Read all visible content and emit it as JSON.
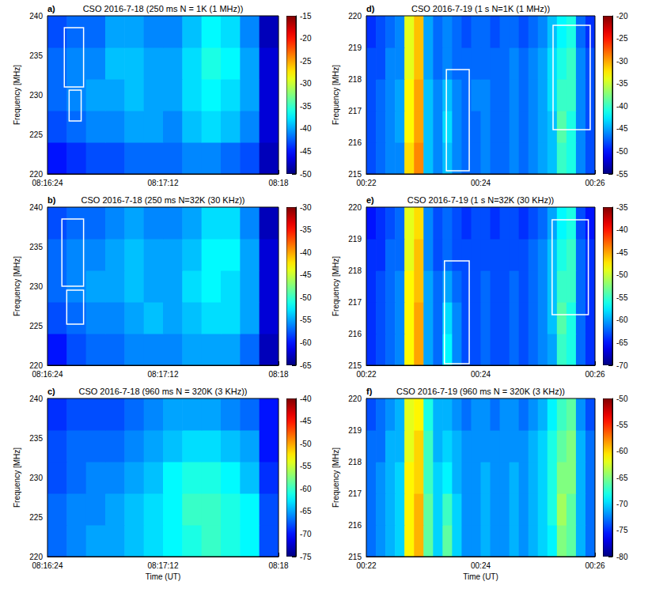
{
  "chart_data": [
    {
      "type": "heatmap",
      "panel": "a)",
      "title": "CSO 2016-7-18 (250 ms N = 1K (1 MHz))",
      "ylabel": "Frequency [MHz]",
      "xlim": [
        29784,
        29880
      ],
      "xticks": [
        {
          "value": 29784,
          "label": "08:16:24"
        },
        {
          "value": 29832,
          "label": "08:17:12"
        },
        {
          "value": 29880,
          "label": "08:18"
        }
      ],
      "ylim": [
        220,
        240
      ],
      "yticks": [
        220,
        225,
        230,
        235,
        240
      ],
      "cells": {
        "x": [
          29784,
          29792,
          29800,
          29808,
          29816,
          29824,
          29832,
          29840,
          29848,
          29856,
          29864,
          29872,
          29880
        ],
        "y": [
          220,
          224,
          228,
          232,
          236,
          240
        ],
        "values": [
          [
            -45,
            -44,
            -43,
            -43,
            -42,
            -42,
            -42,
            -41,
            -41,
            -42,
            -43,
            -48
          ],
          [
            -43,
            -42,
            -41,
            -41,
            -40,
            -40,
            -41,
            -39,
            -38,
            -39,
            -41,
            -47
          ],
          [
            -42,
            -41,
            -40,
            -40,
            -39,
            -40,
            -40,
            -38,
            -37,
            -38,
            -40,
            -47
          ],
          [
            -42,
            -41,
            -41,
            -39,
            -39,
            -40,
            -40,
            -38,
            -36,
            -37,
            -40,
            -47
          ],
          [
            -43,
            -42,
            -42,
            -40,
            -40,
            -41,
            -41,
            -39,
            -37,
            -38,
            -41,
            -48
          ]
        ]
      },
      "colorbar": {
        "range": [
          -50,
          -15
        ],
        "ticks": [
          -50,
          -45,
          -40,
          -35,
          -30,
          -25,
          -20,
          -15
        ]
      },
      "boxes": [
        {
          "x": [
            29791,
            29799
          ],
          "y": [
            231,
            238.5
          ]
        },
        {
          "x": [
            29793,
            29798
          ],
          "y": [
            226.7,
            230.6
          ]
        }
      ]
    },
    {
      "type": "heatmap",
      "panel": "b)",
      "title": "CSO 2016-7-18 (250 ms N=32K (30 KHz))",
      "ylabel": "Frequency [MHz]",
      "xlim": [
        29784,
        29880
      ],
      "xticks": [
        {
          "value": 29784,
          "label": "08:16:24"
        },
        {
          "value": 29832,
          "label": "08:17:12"
        },
        {
          "value": 29880,
          "label": "08:18"
        }
      ],
      "ylim": [
        220,
        240
      ],
      "yticks": [
        220,
        225,
        230,
        235,
        240
      ],
      "cells": {
        "x": [
          29784,
          29792,
          29800,
          29808,
          29816,
          29824,
          29832,
          29840,
          29848,
          29856,
          29864,
          29872,
          29880
        ],
        "y": [
          220,
          224,
          228,
          232,
          236,
          240
        ],
        "values": [
          [
            -60,
            -58,
            -57,
            -57,
            -56,
            -56,
            -56,
            -55,
            -55,
            -55,
            -57,
            -63
          ],
          [
            -58,
            -57,
            -56,
            -56,
            -55,
            -54,
            -55,
            -54,
            -53,
            -53,
            -55,
            -62
          ],
          [
            -57,
            -56,
            -55,
            -55,
            -54,
            -55,
            -55,
            -53,
            -52,
            -53,
            -55,
            -62
          ],
          [
            -57,
            -56,
            -56,
            -55,
            -54,
            -55,
            -55,
            -54,
            -52,
            -52,
            -55,
            -62
          ],
          [
            -58,
            -57,
            -57,
            -56,
            -55,
            -56,
            -56,
            -55,
            -53,
            -53,
            -56,
            -63
          ]
        ]
      },
      "colorbar": {
        "range": [
          -65,
          -30
        ],
        "ticks": [
          -65,
          -60,
          -55,
          -50,
          -45,
          -40,
          -35,
          -30
        ]
      },
      "boxes": [
        {
          "x": [
            29790,
            29799
          ],
          "y": [
            230,
            238.5
          ]
        },
        {
          "x": [
            29792,
            29799
          ],
          "y": [
            225.2,
            229.5
          ]
        }
      ]
    },
    {
      "type": "heatmap",
      "panel": "c)",
      "title": "CSO 2016-7-18 (960 ms N = 320K (3 KHz))",
      "xlabel": "Time (UT)",
      "ylabel": "Frequency [MHz]",
      "xlim": [
        29784,
        29880
      ],
      "xticks": [
        {
          "value": 29784,
          "label": "08:16:24"
        },
        {
          "value": 29832,
          "label": "08:17:12"
        },
        {
          "value": 29880,
          "label": "08:18"
        }
      ],
      "ylim": [
        220,
        240
      ],
      "yticks": [
        220,
        225,
        230,
        235,
        240
      ],
      "cells": {
        "x": [
          29784,
          29792,
          29800,
          29808,
          29816,
          29824,
          29832,
          29840,
          29848,
          29856,
          29864,
          29872,
          29880
        ],
        "y": [
          220,
          224,
          228,
          232,
          236,
          240
        ],
        "values": [
          [
            -67,
            -66,
            -65,
            -65,
            -64,
            -63,
            -62,
            -61,
            -60,
            -61,
            -62,
            -68
          ],
          [
            -67,
            -66,
            -66,
            -65,
            -64,
            -63,
            -62,
            -60,
            -60,
            -61,
            -62,
            -68
          ],
          [
            -68,
            -67,
            -66,
            -66,
            -65,
            -64,
            -62,
            -61,
            -61,
            -62,
            -64,
            -69
          ],
          [
            -68,
            -67,
            -67,
            -67,
            -66,
            -65,
            -64,
            -63,
            -63,
            -64,
            -65,
            -70
          ],
          [
            -69,
            -68,
            -68,
            -68,
            -67,
            -66,
            -65,
            -65,
            -65,
            -66,
            -67,
            -70
          ]
        ]
      },
      "colorbar": {
        "range": [
          -75,
          -40
        ],
        "ticks": [
          -75,
          -70,
          -65,
          -60,
          -55,
          -50,
          -45,
          -40
        ]
      }
    },
    {
      "type": "heatmap",
      "panel": "d)",
      "title": "CSO 2016-7-19 (1 s N=1K (1 MHz))",
      "ylabel": "Frequency [MHz]",
      "xlim": [
        1320,
        1560
      ],
      "xticks": [
        {
          "value": 1320,
          "label": "00:22"
        },
        {
          "value": 1440,
          "label": "00:24"
        },
        {
          "value": 1560,
          "label": "00:26"
        }
      ],
      "ylim": [
        215,
        220
      ],
      "yticks": [
        215,
        216,
        217,
        218,
        219,
        220
      ],
      "cells": {
        "x": [
          1320,
          1330,
          1340,
          1350,
          1360,
          1370,
          1380,
          1390,
          1400,
          1410,
          1420,
          1430,
          1440,
          1450,
          1460,
          1470,
          1480,
          1490,
          1500,
          1510,
          1520,
          1530,
          1540,
          1550,
          1560
        ],
        "y": [
          215,
          216,
          217,
          218,
          219,
          220
        ],
        "values": [
          [
            -48,
            -47,
            -46,
            -46,
            -32,
            -29,
            -44,
            -46,
            -44,
            -46,
            -47,
            -47,
            -46,
            -47,
            -47,
            -46,
            -47,
            -46,
            -45,
            -44,
            -40,
            -41,
            -46,
            -48
          ],
          [
            -48,
            -47,
            -46,
            -45,
            -33,
            -30,
            -44,
            -46,
            -43,
            -46,
            -47,
            -47,
            -46,
            -47,
            -47,
            -46,
            -47,
            -46,
            -45,
            -44,
            -39,
            -41,
            -46,
            -48
          ],
          [
            -48,
            -47,
            -46,
            -45,
            -33,
            -30,
            -44,
            -46,
            -44,
            -46,
            -47,
            -46,
            -46,
            -47,
            -47,
            -46,
            -47,
            -46,
            -45,
            -43,
            -40,
            -40,
            -46,
            -48
          ],
          [
            -48,
            -48,
            -46,
            -46,
            -34,
            -31,
            -45,
            -47,
            -46,
            -47,
            -47,
            -47,
            -47,
            -47,
            -47,
            -46,
            -47,
            -46,
            -45,
            -43,
            -41,
            -40,
            -46,
            -48
          ],
          [
            -49,
            -48,
            -47,
            -46,
            -34,
            -31,
            -45,
            -47,
            -46,
            -47,
            -48,
            -47,
            -47,
            -48,
            -47,
            -47,
            -48,
            -47,
            -46,
            -44,
            -42,
            -41,
            -47,
            -49
          ]
        ]
      },
      "colorbar": {
        "range": [
          -55,
          -20
        ],
        "ticks": [
          -55,
          -50,
          -45,
          -40,
          -35,
          -30,
          -25,
          -20
        ]
      },
      "boxes": [
        {
          "x": [
            1404,
            1428
          ],
          "y": [
            215.1,
            218.3
          ]
        },
        {
          "x": [
            1516,
            1555
          ],
          "y": [
            216.4,
            219.7
          ]
        }
      ]
    },
    {
      "type": "heatmap",
      "panel": "e)",
      "title": "CSO 2016-7-19 (1 s N=32K (30 KHz))",
      "ylabel": "Frequency [MHz]",
      "xlim": [
        1320,
        1560
      ],
      "xticks": [
        {
          "value": 1320,
          "label": "00:22"
        },
        {
          "value": 1440,
          "label": "00:24"
        },
        {
          "value": 1560,
          "label": "00:26"
        }
      ],
      "ylim": [
        215,
        220
      ],
      "yticks": [
        215,
        216,
        217,
        218,
        219,
        220
      ],
      "cells": {
        "x": [
          1320,
          1330,
          1340,
          1350,
          1360,
          1370,
          1380,
          1390,
          1400,
          1410,
          1420,
          1430,
          1440,
          1450,
          1460,
          1470,
          1480,
          1490,
          1500,
          1510,
          1520,
          1530,
          1540,
          1550,
          1560
        ],
        "y": [
          215,
          216,
          217,
          218,
          219,
          220
        ],
        "values": [
          [
            -64,
            -63,
            -62,
            -61,
            -48,
            -45,
            -60,
            -62,
            -57,
            -61,
            -63,
            -63,
            -62,
            -63,
            -63,
            -62,
            -63,
            -62,
            -61,
            -60,
            -55,
            -56,
            -62,
            -64
          ],
          [
            -64,
            -63,
            -62,
            -61,
            -48,
            -45,
            -60,
            -62,
            -58,
            -61,
            -63,
            -63,
            -62,
            -63,
            -63,
            -62,
            -63,
            -62,
            -61,
            -59,
            -54,
            -56,
            -62,
            -64
          ],
          [
            -64,
            -63,
            -62,
            -61,
            -48,
            -46,
            -60,
            -62,
            -60,
            -62,
            -63,
            -63,
            -62,
            -63,
            -63,
            -62,
            -63,
            -62,
            -61,
            -59,
            -55,
            -55,
            -62,
            -64
          ],
          [
            -64,
            -64,
            -62,
            -62,
            -49,
            -46,
            -61,
            -63,
            -62,
            -63,
            -63,
            -63,
            -63,
            -63,
            -63,
            -63,
            -63,
            -62,
            -61,
            -59,
            -56,
            -55,
            -62,
            -64
          ],
          [
            -65,
            -64,
            -63,
            -62,
            -49,
            -47,
            -61,
            -63,
            -62,
            -63,
            -64,
            -63,
            -63,
            -64,
            -63,
            -63,
            -64,
            -63,
            -62,
            -60,
            -57,
            -56,
            -63,
            -65
          ]
        ]
      },
      "colorbar": {
        "range": [
          -70,
          -35
        ],
        "ticks": [
          -70,
          -65,
          -60,
          -55,
          -50,
          -45,
          -40,
          -35
        ]
      },
      "boxes": [
        {
          "x": [
            1402,
            1428
          ],
          "y": [
            215.05,
            218.3
          ]
        },
        {
          "x": [
            1515,
            1553
          ],
          "y": [
            216.6,
            219.6
          ]
        }
      ]
    },
    {
      "type": "heatmap",
      "panel": "f)",
      "title": "CSO 2016-7-19 (960 ms N = 320K (3 KHz))",
      "xlabel": "Time (UT)",
      "ylabel": "Frequency [MHz]",
      "xlim": [
        1320,
        1560
      ],
      "xticks": [
        {
          "value": 1320,
          "label": "00:22"
        },
        {
          "value": 1440,
          "label": "00:24"
        },
        {
          "value": 1560,
          "label": "00:26"
        }
      ],
      "ylim": [
        215,
        220
      ],
      "yticks": [
        215,
        216,
        217,
        218,
        219,
        220
      ],
      "cells": {
        "x": [
          1320,
          1330,
          1340,
          1350,
          1360,
          1370,
          1380,
          1390,
          1400,
          1410,
          1420,
          1430,
          1440,
          1450,
          1460,
          1470,
          1480,
          1490,
          1500,
          1510,
          1520,
          1530,
          1540,
          1550,
          1560
        ],
        "y": [
          215,
          216,
          217,
          218,
          219,
          220
        ],
        "values": [
          [
            -73,
            -72,
            -71,
            -70,
            -61,
            -59,
            -66,
            -70,
            -66,
            -70,
            -72,
            -72,
            -71,
            -72,
            -72,
            -71,
            -72,
            -71,
            -70,
            -69,
            -65,
            -66,
            -71,
            -73
          ],
          [
            -73,
            -72,
            -71,
            -70,
            -61,
            -59,
            -66,
            -70,
            -67,
            -70,
            -72,
            -72,
            -71,
            -72,
            -72,
            -71,
            -72,
            -71,
            -70,
            -68,
            -64,
            -66,
            -71,
            -73
          ],
          [
            -73,
            -72,
            -71,
            -70,
            -61,
            -60,
            -67,
            -70,
            -69,
            -71,
            -72,
            -72,
            -71,
            -72,
            -72,
            -71,
            -72,
            -71,
            -70,
            -68,
            -65,
            -65,
            -71,
            -73
          ],
          [
            -73,
            -73,
            -71,
            -71,
            -62,
            -60,
            -67,
            -71,
            -70,
            -71,
            -72,
            -72,
            -72,
            -72,
            -72,
            -72,
            -72,
            -71,
            -70,
            -68,
            -66,
            -65,
            -71,
            -73
          ],
          [
            -74,
            -73,
            -72,
            -71,
            -62,
            -61,
            -68,
            -71,
            -71,
            -72,
            -73,
            -72,
            -72,
            -73,
            -72,
            -72,
            -73,
            -72,
            -71,
            -69,
            -67,
            -66,
            -72,
            -74
          ]
        ]
      },
      "colorbar": {
        "range": [
          -80,
          -50
        ],
        "ticks": [
          -80,
          -75,
          -70,
          -65,
          -60,
          -55,
          -50
        ]
      }
    }
  ]
}
